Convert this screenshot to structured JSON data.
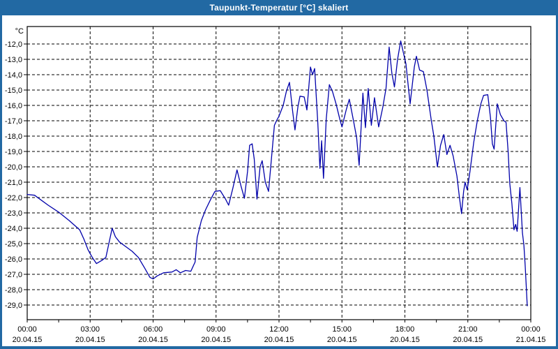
{
  "window": {
    "title": "Taupunkt-Temperatur [°C] skaliert",
    "title_bar_color": "#2269a3",
    "border_color": "#2269a3",
    "background_color": "#ffffff"
  },
  "chart_data": {
    "type": "line",
    "title": "Taupunkt-Temperatur [°C] skaliert",
    "grid": "dashed",
    "legend": "none",
    "line_color": "#0000aa",
    "grid_color": "#000000",
    "plot_background": "#ffffff",
    "y_axis": {
      "unit_label": "°C",
      "min": -29.0,
      "max": -12.0,
      "tick_step": 1.0,
      "ticks": [
        {
          "value": -12.0,
          "label": "-12,0"
        },
        {
          "value": -13.0,
          "label": "-13,0"
        },
        {
          "value": -14.0,
          "label": "-14,0"
        },
        {
          "value": -15.0,
          "label": "-15,0"
        },
        {
          "value": -16.0,
          "label": "-16,0"
        },
        {
          "value": -17.0,
          "label": "-17,0"
        },
        {
          "value": -18.0,
          "label": "-18,0"
        },
        {
          "value": -19.0,
          "label": "-19,0"
        },
        {
          "value": -20.0,
          "label": "-20,0"
        },
        {
          "value": -21.0,
          "label": "-21,0"
        },
        {
          "value": -22.0,
          "label": "-22,0"
        },
        {
          "value": -23.0,
          "label": "-23,0"
        },
        {
          "value": -24.0,
          "label": "-24,0"
        },
        {
          "value": -25.0,
          "label": "-25,0"
        },
        {
          "value": -26.0,
          "label": "-26,0"
        },
        {
          "value": -27.0,
          "label": "-27,0"
        },
        {
          "value": -28.0,
          "label": "-28,0"
        },
        {
          "value": -29.0,
          "label": "-29,0"
        }
      ]
    },
    "x_axis": {
      "range_hours": [
        0,
        24
      ],
      "minor_tick_step_hours": 1.5,
      "major_tick_step_hours": 3,
      "ticks": [
        {
          "hour": 0,
          "time": "00:00",
          "date": "20.04.15"
        },
        {
          "hour": 3,
          "time": "03:00",
          "date": "20.04.15"
        },
        {
          "hour": 6,
          "time": "06:00",
          "date": "20.04.15"
        },
        {
          "hour": 9,
          "time": "09:00",
          "date": "20.04.15"
        },
        {
          "hour": 12,
          "time": "12:00",
          "date": "20.04.15"
        },
        {
          "hour": 15,
          "time": "15:00",
          "date": "20.04.15"
        },
        {
          "hour": 18,
          "time": "18:00",
          "date": "20.04.15"
        },
        {
          "hour": 21,
          "time": "21:00",
          "date": "20.04.15"
        },
        {
          "hour": 24,
          "time": "00:00",
          "date": "21.04.15"
        }
      ]
    },
    "series": [
      {
        "name": "Taupunkt-Temperatur",
        "points": [
          [
            0.0,
            -21.8
          ],
          [
            0.35,
            -21.85
          ],
          [
            0.6,
            -22.1
          ],
          [
            1.0,
            -22.5
          ],
          [
            1.5,
            -22.95
          ],
          [
            2.0,
            -23.5
          ],
          [
            2.5,
            -24.1
          ],
          [
            2.7,
            -24.7
          ],
          [
            2.9,
            -25.4
          ],
          [
            3.1,
            -25.9
          ],
          [
            3.3,
            -26.3
          ],
          [
            3.55,
            -26.1
          ],
          [
            3.75,
            -25.9
          ],
          [
            4.05,
            -24.0
          ],
          [
            4.2,
            -24.55
          ],
          [
            4.4,
            -24.9
          ],
          [
            4.7,
            -25.2
          ],
          [
            5.0,
            -25.5
          ],
          [
            5.3,
            -25.9
          ],
          [
            5.6,
            -26.6
          ],
          [
            5.85,
            -27.2
          ],
          [
            6.0,
            -27.3
          ],
          [
            6.2,
            -27.1
          ],
          [
            6.5,
            -26.9
          ],
          [
            6.9,
            -26.85
          ],
          [
            7.1,
            -26.7
          ],
          [
            7.3,
            -26.9
          ],
          [
            7.55,
            -26.75
          ],
          [
            7.8,
            -26.8
          ],
          [
            8.0,
            -26.2
          ],
          [
            8.1,
            -24.6
          ],
          [
            8.3,
            -23.5
          ],
          [
            8.5,
            -22.8
          ],
          [
            8.75,
            -22.1
          ],
          [
            8.95,
            -21.6
          ],
          [
            9.2,
            -21.55
          ],
          [
            9.45,
            -22.1
          ],
          [
            9.6,
            -22.5
          ],
          [
            9.8,
            -21.4
          ],
          [
            10.0,
            -20.2
          ],
          [
            10.2,
            -21.3
          ],
          [
            10.35,
            -22.05
          ],
          [
            10.5,
            -20.3
          ],
          [
            10.6,
            -18.6
          ],
          [
            10.72,
            -18.5
          ],
          [
            10.82,
            -19.5
          ],
          [
            10.95,
            -22.1
          ],
          [
            11.1,
            -20.0
          ],
          [
            11.2,
            -19.6
          ],
          [
            11.35,
            -21.0
          ],
          [
            11.5,
            -21.6
          ],
          [
            11.65,
            -19.3
          ],
          [
            11.78,
            -17.3
          ],
          [
            11.88,
            -17.0
          ],
          [
            12.0,
            -16.7
          ],
          [
            12.2,
            -16.0
          ],
          [
            12.35,
            -15.1
          ],
          [
            12.5,
            -14.5
          ],
          [
            12.65,
            -16.4
          ],
          [
            12.76,
            -17.6
          ],
          [
            12.9,
            -16.1
          ],
          [
            13.0,
            -15.4
          ],
          [
            13.2,
            -15.45
          ],
          [
            13.33,
            -16.3
          ],
          [
            13.5,
            -13.5
          ],
          [
            13.6,
            -14.0
          ],
          [
            13.7,
            -13.6
          ],
          [
            13.85,
            -17.2
          ],
          [
            13.95,
            -20.1
          ],
          [
            14.03,
            -18.3
          ],
          [
            14.12,
            -20.75
          ],
          [
            14.25,
            -16.9
          ],
          [
            14.4,
            -14.65
          ],
          [
            14.55,
            -15.1
          ],
          [
            14.72,
            -15.9
          ],
          [
            14.9,
            -16.9
          ],
          [
            15.0,
            -17.4
          ],
          [
            15.2,
            -16.3
          ],
          [
            15.35,
            -15.6
          ],
          [
            15.55,
            -17.0
          ],
          [
            15.7,
            -18.1
          ],
          [
            15.82,
            -19.9
          ],
          [
            16.0,
            -15.2
          ],
          [
            16.12,
            -17.45
          ],
          [
            16.25,
            -14.9
          ],
          [
            16.4,
            -17.3
          ],
          [
            16.55,
            -15.5
          ],
          [
            16.75,
            -17.4
          ],
          [
            16.95,
            -16.1
          ],
          [
            17.1,
            -14.9
          ],
          [
            17.25,
            -12.2
          ],
          [
            17.38,
            -13.9
          ],
          [
            17.5,
            -14.8
          ],
          [
            17.65,
            -13.0
          ],
          [
            17.8,
            -11.8
          ],
          [
            17.95,
            -12.7
          ],
          [
            18.05,
            -13.3
          ],
          [
            18.25,
            -15.9
          ],
          [
            18.45,
            -13.5
          ],
          [
            18.55,
            -12.8
          ],
          [
            18.7,
            -13.7
          ],
          [
            18.88,
            -13.8
          ],
          [
            19.05,
            -15.0
          ],
          [
            19.25,
            -16.9
          ],
          [
            19.38,
            -18.0
          ],
          [
            19.55,
            -20.0
          ],
          [
            19.7,
            -18.6
          ],
          [
            19.85,
            -17.9
          ],
          [
            20.0,
            -19.2
          ],
          [
            20.15,
            -18.6
          ],
          [
            20.3,
            -19.3
          ],
          [
            20.48,
            -20.6
          ],
          [
            20.6,
            -22.0
          ],
          [
            20.7,
            -23.05
          ],
          [
            20.8,
            -21.6
          ],
          [
            20.87,
            -21.0
          ],
          [
            20.97,
            -21.5
          ],
          [
            21.1,
            -20.3
          ],
          [
            21.28,
            -18.4
          ],
          [
            21.45,
            -17.0
          ],
          [
            21.62,
            -15.9
          ],
          [
            21.75,
            -15.35
          ],
          [
            21.95,
            -15.3
          ],
          [
            22.08,
            -16.8
          ],
          [
            22.17,
            -18.5
          ],
          [
            22.25,
            -18.85
          ],
          [
            22.4,
            -15.9
          ],
          [
            22.55,
            -16.6
          ],
          [
            22.72,
            -17.0
          ],
          [
            22.82,
            -17.1
          ],
          [
            22.92,
            -19.0
          ],
          [
            23.0,
            -21.1
          ],
          [
            23.1,
            -22.4
          ],
          [
            23.2,
            -24.1
          ],
          [
            23.28,
            -23.75
          ],
          [
            23.35,
            -24.2
          ],
          [
            23.48,
            -21.35
          ],
          [
            23.6,
            -24.3
          ],
          [
            23.67,
            -25.1
          ],
          [
            23.73,
            -26.4
          ],
          [
            23.78,
            -27.7
          ],
          [
            23.83,
            -29.05
          ]
        ]
      }
    ]
  }
}
